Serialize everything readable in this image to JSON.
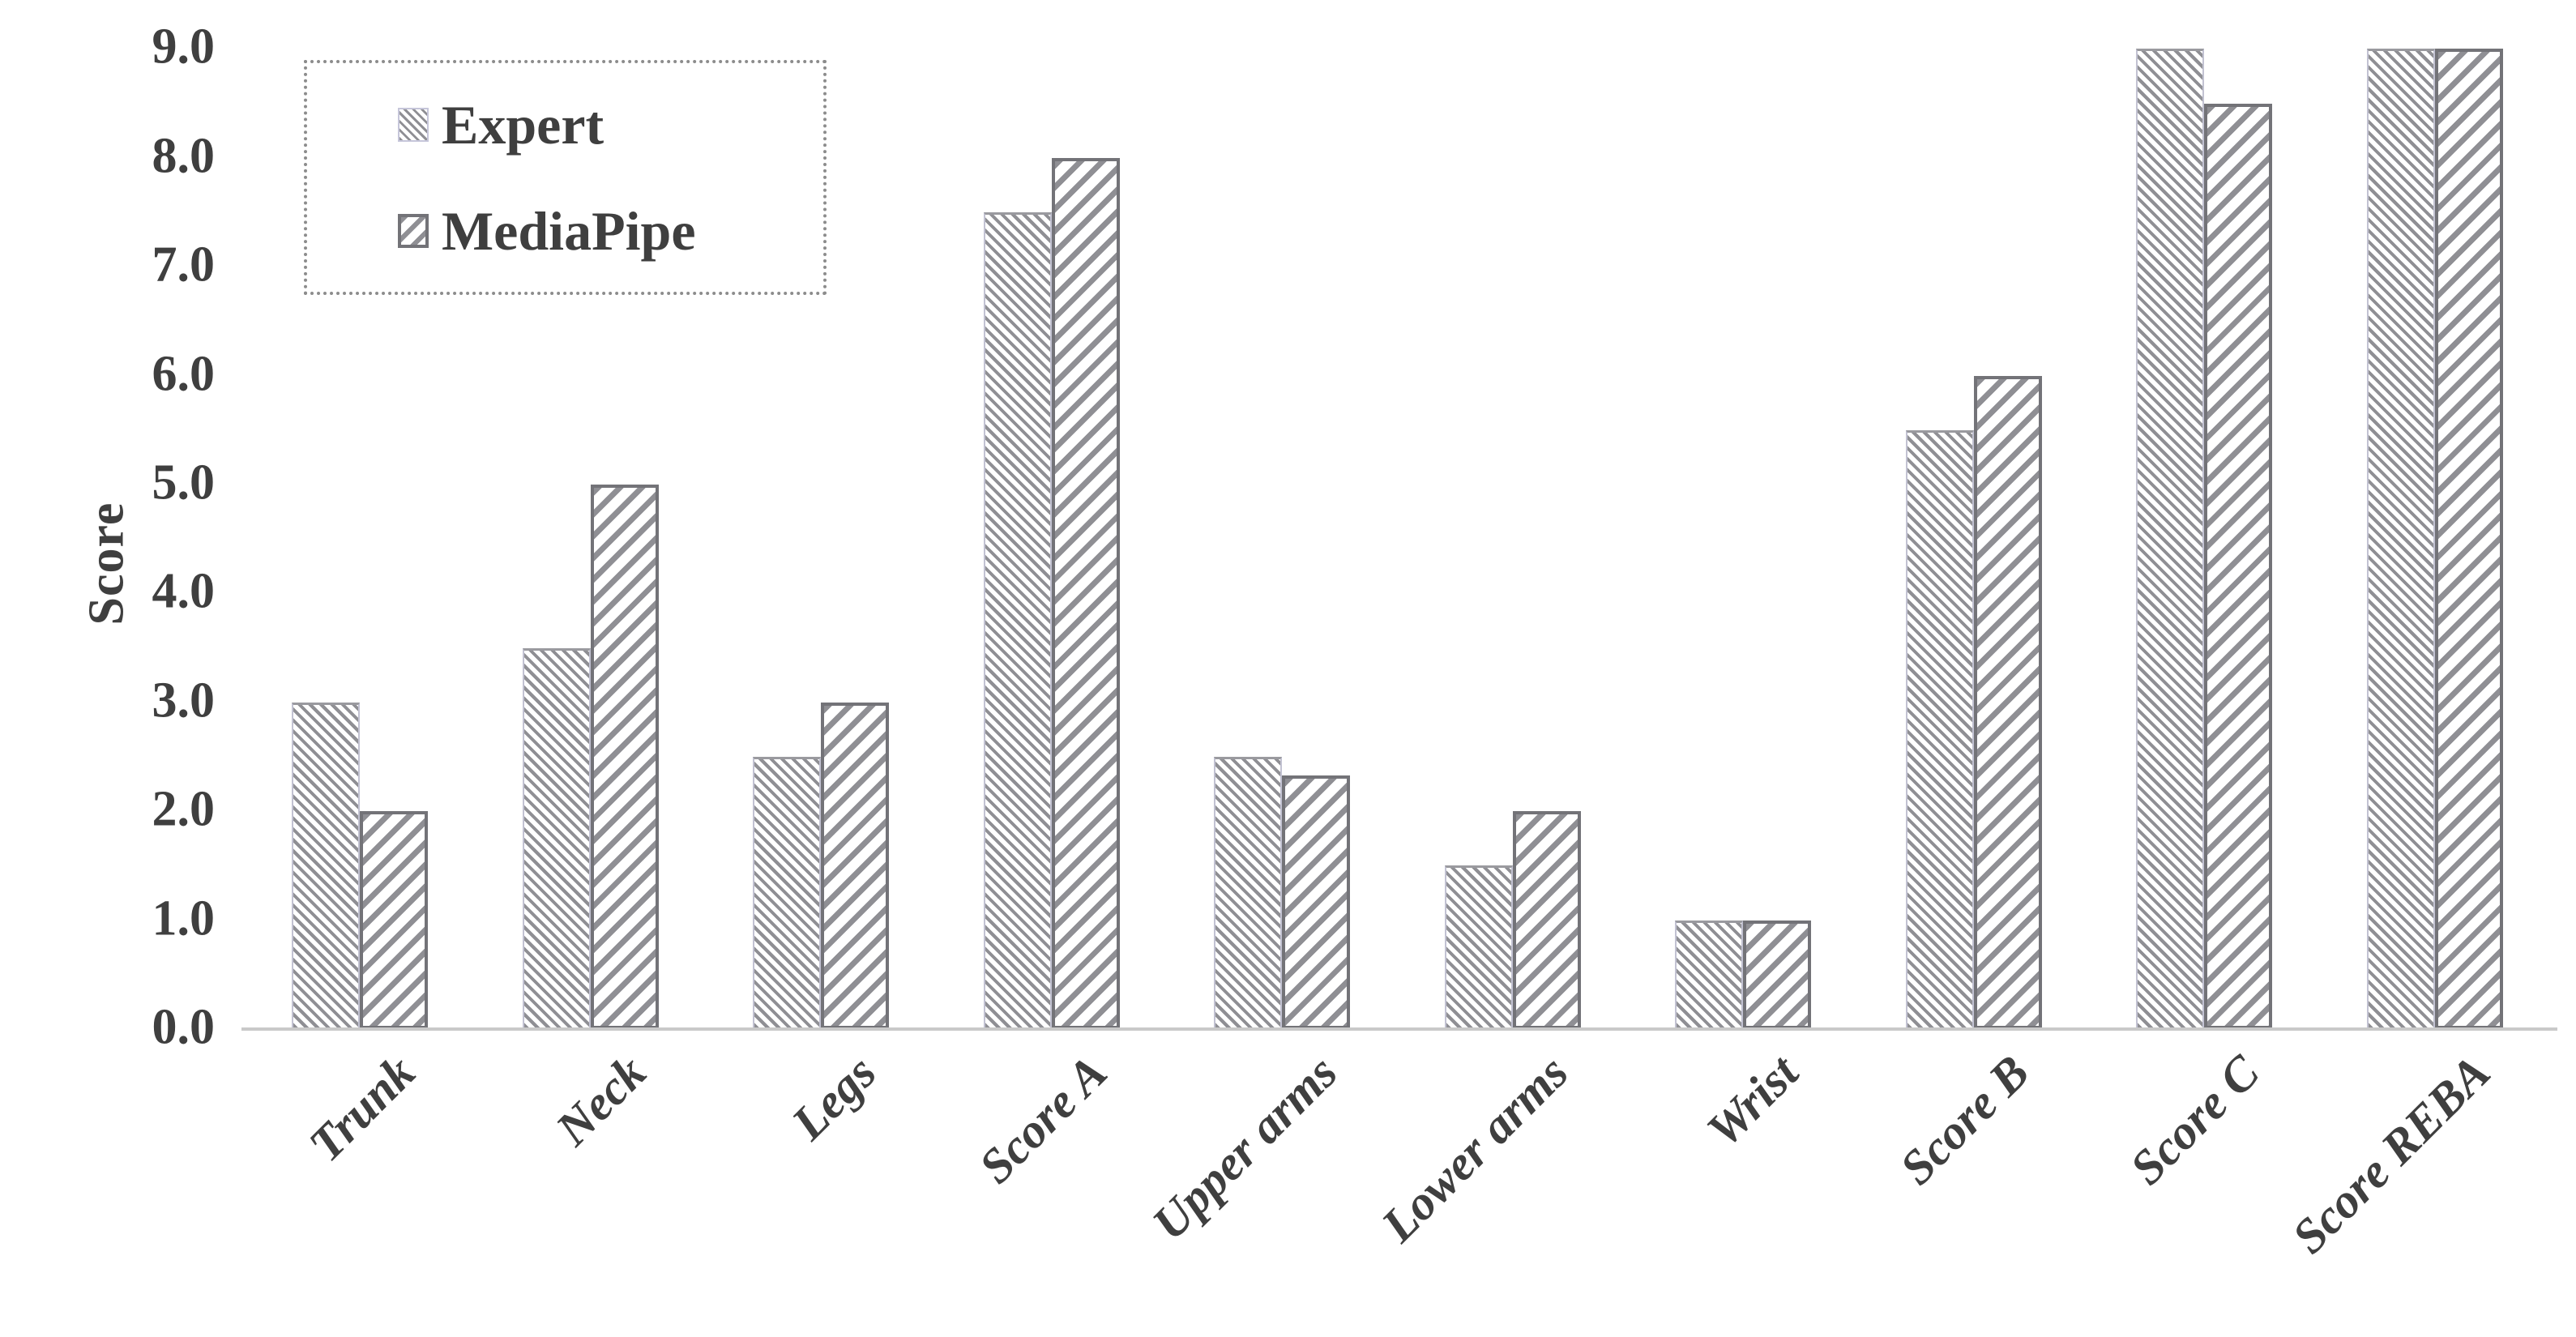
{
  "figure": {
    "background": "#ffffff",
    "text_color": "#3f3f3f",
    "axis_line_color": "#c9c9c9",
    "hatch_color": "#8f8f94",
    "mediapipe_border_color": "#737378"
  },
  "y_axis": {
    "title": "Score",
    "tick_labels": [
      "0.0",
      "1.0",
      "2.0",
      "3.0",
      "4.0",
      "5.0",
      "6.0",
      "7.0",
      "8.0",
      "9.0"
    ]
  },
  "legend": {
    "items": [
      {
        "label": "Expert",
        "swatch": "fine-backslash-hatch"
      },
      {
        "label": "MediaPipe",
        "swatch": "wide-slash-hatch"
      }
    ]
  },
  "chart_data": {
    "type": "bar",
    "title": "",
    "xlabel": "",
    "ylabel": "Score",
    "ylim": [
      0,
      9
    ],
    "ytick_step": 1.0,
    "grid": false,
    "legend_position": "upper-left",
    "bar_style": "white fill with gray diagonal hatching; Expert = fine backslash hatch, MediaPipe = wide forward-slash hatch with dark outline",
    "categories": [
      "Trunk",
      "Neck",
      "Legs",
      "Score A",
      "Upper arms",
      "Lower arms",
      "Wrist",
      "Score B",
      "Score C",
      "Score REBA"
    ],
    "series": [
      {
        "name": "Expert",
        "values": [
          3.0,
          3.5,
          2.5,
          7.5,
          2.5,
          1.5,
          1.0,
          5.5,
          9.0,
          9.0
        ]
      },
      {
        "name": "MediaPipe",
        "values": [
          2.0,
          5.0,
          3.0,
          8.0,
          2.33,
          2.0,
          1.0,
          6.0,
          8.5,
          9.0
        ]
      }
    ]
  }
}
